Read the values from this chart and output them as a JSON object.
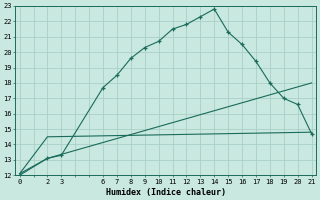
{
  "xlabel": "Humidex (Indice chaleur)",
  "bg_color": "#c8e8e0",
  "grid_color": "#a8d0c8",
  "line_color": "#1a6b5a",
  "x_tick_labels": [
    0,
    2,
    3,
    6,
    7,
    8,
    9,
    10,
    11,
    12,
    13,
    14,
    15,
    16,
    17,
    18,
    19,
    20,
    21
  ],
  "x_all_ticks": [
    0,
    1,
    2,
    3,
    4,
    5,
    6,
    7,
    8,
    9,
    10,
    11,
    12,
    13,
    14,
    15,
    16,
    17,
    18,
    19,
    20,
    21
  ],
  "ylim": [
    12,
    23
  ],
  "xlim": [
    -0.3,
    21.3
  ],
  "line1_x": [
    0,
    2,
    3,
    6,
    7,
    8,
    9,
    10,
    11,
    12,
    13,
    14,
    15,
    16,
    17,
    18,
    19,
    20,
    21
  ],
  "line1_y": [
    12.0,
    13.1,
    13.3,
    17.7,
    18.5,
    19.6,
    20.3,
    20.7,
    21.5,
    21.8,
    22.3,
    22.8,
    21.3,
    20.5,
    19.4,
    18.0,
    17.0,
    16.6,
    14.7
  ],
  "line2_x": [
    0,
    2,
    21
  ],
  "line2_y": [
    12.1,
    14.5,
    14.8
  ],
  "line3_x": [
    0,
    2,
    21
  ],
  "line3_y": [
    12.1,
    13.1,
    18.0
  ],
  "marker": "+"
}
